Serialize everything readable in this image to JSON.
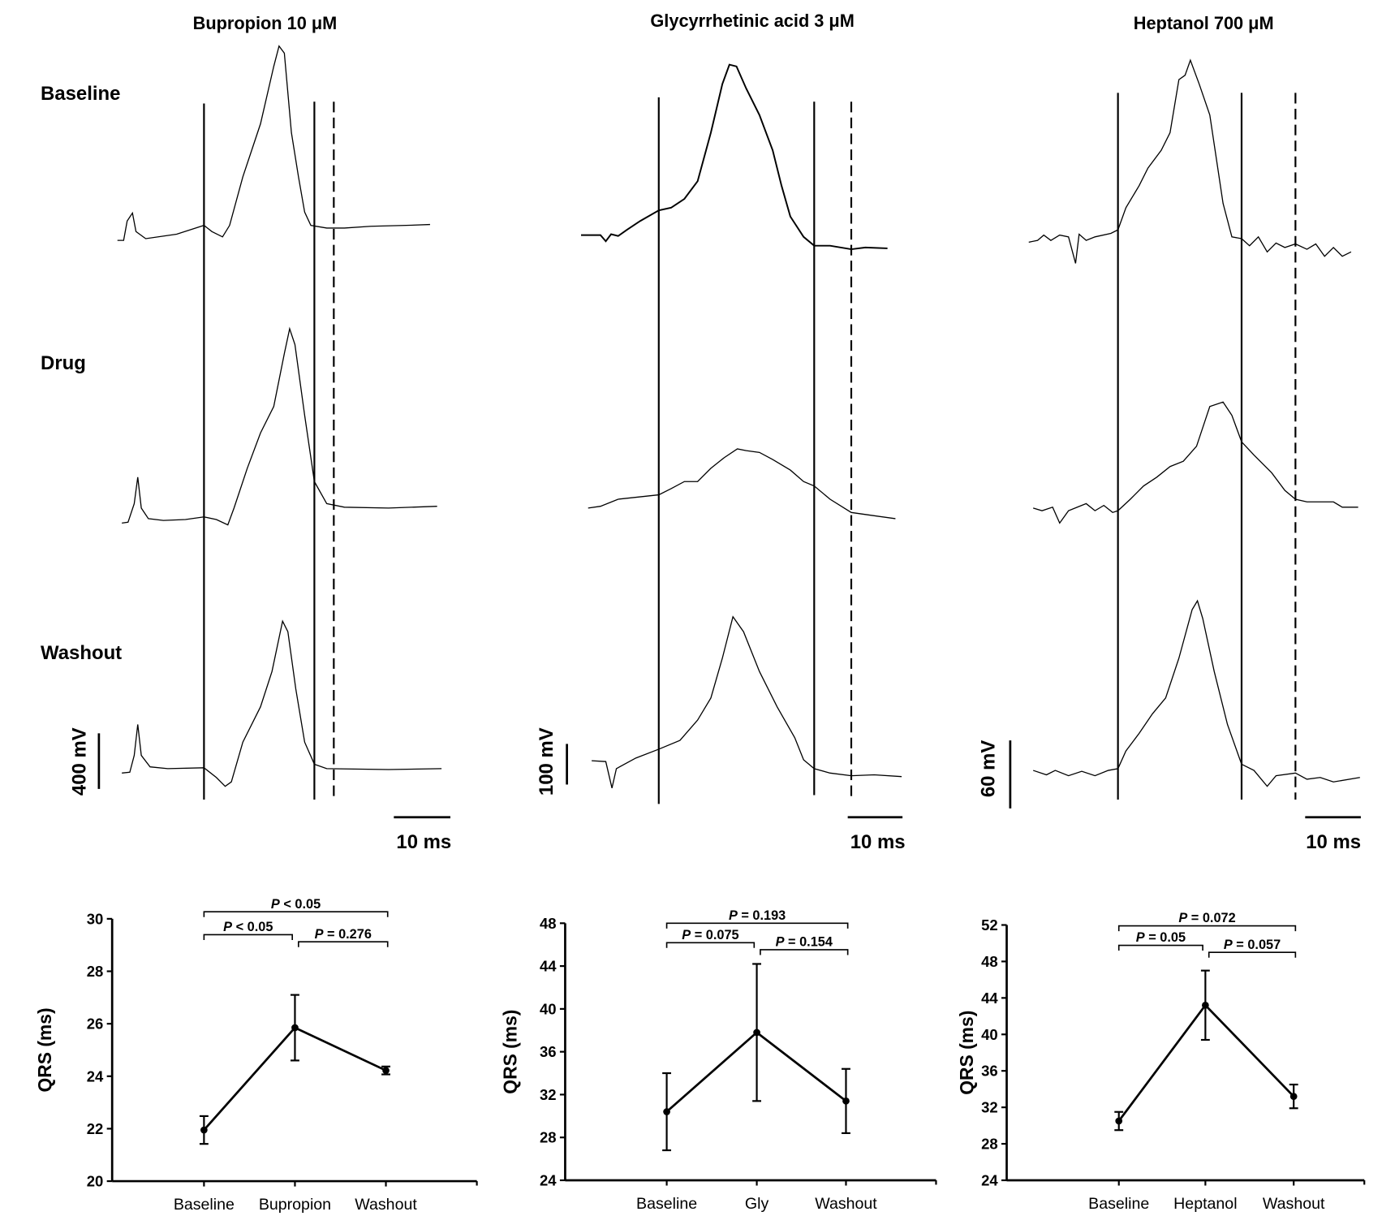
{
  "row_labels": [
    "Baseline",
    "Drug",
    "Washout"
  ],
  "panels": [
    {
      "title": "Bupropion 10 μM",
      "voltage_scale": "400 mV",
      "time_scale": "10 ms"
    },
    {
      "title": "Glycyrrhetinic acid 3 μM",
      "voltage_scale": "100 mV",
      "time_scale": "10 ms"
    },
    {
      "title": "Heptanol 700 μM",
      "voltage_scale": "60 mV",
      "time_scale": "10 ms"
    }
  ],
  "chart_data": [
    {
      "type": "line",
      "ylabel": "QRS (ms)",
      "ylim": [
        20,
        30
      ],
      "yticks": [
        20,
        22,
        24,
        26,
        28,
        30
      ],
      "categories": [
        "Baseline",
        "Bupropion",
        "Washout"
      ],
      "values": [
        21.95,
        25.85,
        24.22
      ],
      "error": [
        0.53,
        1.25,
        0.15
      ],
      "comparisons": [
        {
          "from": 0,
          "to": 2,
          "label": "P < 0.05"
        },
        {
          "from": 0,
          "to": 1,
          "label": "P < 0.05"
        },
        {
          "from": 1,
          "to": 2,
          "label": "P = 0.276"
        }
      ]
    },
    {
      "type": "line",
      "ylabel": "QRS (ms)",
      "ylim": [
        24,
        48
      ],
      "yticks": [
        24,
        28,
        32,
        36,
        40,
        44,
        48
      ],
      "categories": [
        "Baseline",
        "Gly",
        "Washout"
      ],
      "values": [
        30.4,
        37.8,
        31.4
      ],
      "error": [
        3.6,
        6.4,
        3.0
      ],
      "comparisons": [
        {
          "from": 0,
          "to": 2,
          "label": "P = 0.193"
        },
        {
          "from": 0,
          "to": 1,
          "label": "P = 0.075"
        },
        {
          "from": 1,
          "to": 2,
          "label": "P = 0.154"
        }
      ]
    },
    {
      "type": "line",
      "ylabel": "QRS (ms)",
      "ylim": [
        24,
        52
      ],
      "yticks": [
        24,
        28,
        32,
        36,
        40,
        44,
        48,
        52
      ],
      "categories": [
        "Baseline",
        "Heptanol",
        "Washout"
      ],
      "values": [
        30.5,
        43.2,
        33.2
      ],
      "error": [
        1.0,
        3.8,
        1.3
      ],
      "comparisons": [
        {
          "from": 0,
          "to": 2,
          "label": "P = 0.072"
        },
        {
          "from": 0,
          "to": 1,
          "label": "P = 0.05"
        },
        {
          "from": 1,
          "to": 2,
          "label": "P = 0.057"
        }
      ]
    }
  ]
}
